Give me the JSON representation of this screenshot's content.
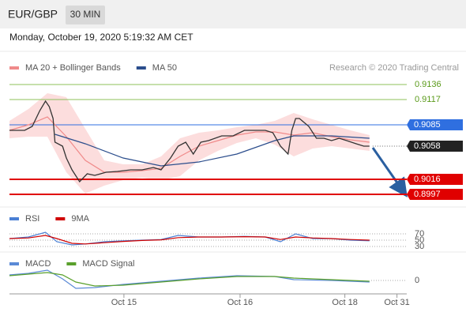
{
  "header": {
    "symbol": "EUR/GBP",
    "interval": "30 MIN",
    "date": "Monday, October 19, 2020 5:19:32 AM CET"
  },
  "chart_data": [
    {
      "type": "line",
      "credit": "Research © 2020 Trading Central",
      "xlim": [
        0,
        208
      ],
      "ylim": [
        0.8983,
        0.9148
      ],
      "price": {
        "color": "#333333",
        "x": [
          0,
          8,
          12,
          16,
          19,
          21,
          23,
          24,
          28,
          30,
          33,
          37,
          41,
          45,
          51,
          57,
          64,
          70,
          76,
          80,
          85,
          89,
          93,
          97,
          101,
          105,
          112,
          118,
          124,
          128,
          135,
          139,
          143,
          147,
          149,
          151,
          153,
          158,
          162,
          166,
          170,
          174,
          178,
          183,
          187,
          190
        ],
        "values": [
          0.9078,
          0.9078,
          0.9083,
          0.9103,
          0.9115,
          0.9108,
          0.9093,
          0.9063,
          0.9058,
          0.9043,
          0.9028,
          0.9013,
          0.9023,
          0.9021,
          0.9025,
          0.9026,
          0.9028,
          0.9028,
          0.9031,
          0.9028,
          0.9043,
          0.9058,
          0.9063,
          0.9048,
          0.9063,
          0.9065,
          0.9071,
          0.9071,
          0.9078,
          0.9078,
          0.9078,
          0.9075,
          0.9058,
          0.9048,
          0.9078,
          0.9093,
          0.9093,
          0.9083,
          0.9068,
          0.9068,
          0.9065,
          0.9068,
          0.9065,
          0.9061,
          0.9058,
          0.9058
        ]
      },
      "series": [
        {
          "name": "MA 20 + Bollinger Bands",
          "color": "#f08a8a",
          "x": [
            0,
            10,
            20,
            30,
            40,
            50,
            60,
            70,
            80,
            90,
            100,
            110,
            120,
            130,
            140,
            150,
            160,
            170,
            180,
            190
          ],
          "values": [
            0.9078,
            0.9085,
            0.9095,
            0.907,
            0.904,
            0.9025,
            0.9025,
            0.9027,
            0.903,
            0.9045,
            0.9058,
            0.9065,
            0.9072,
            0.9076,
            0.9076,
            0.9072,
            0.9075,
            0.907,
            0.9066,
            0.9063
          ],
          "upper": [
            0.909,
            0.9105,
            0.9125,
            0.912,
            0.908,
            0.904,
            0.9035,
            0.9035,
            0.9045,
            0.9068,
            0.9075,
            0.9078,
            0.9082,
            0.9085,
            0.909,
            0.91,
            0.9092,
            0.9085,
            0.9078,
            0.9072
          ],
          "lower": [
            0.9068,
            0.907,
            0.907,
            0.9025,
            0.8998,
            0.9008,
            0.9015,
            0.9018,
            0.9015,
            0.902,
            0.904,
            0.9052,
            0.9062,
            0.9068,
            0.906,
            0.9045,
            0.9055,
            0.9058,
            0.9055,
            0.9052
          ],
          "band_color": "#fbd4d4"
        },
        {
          "name": "MA 50",
          "color": "#2b4d8c",
          "x": [
            24,
            40,
            60,
            80,
            100,
            120,
            140,
            150,
            170,
            190
          ],
          "values": [
            0.9073,
            0.9061,
            0.9043,
            0.9033,
            0.9038,
            0.9048,
            0.9065,
            0.9071,
            0.9071,
            0.9068
          ]
        }
      ],
      "levels": [
        {
          "value": 0.9136,
          "color": "#8dc05a",
          "style": "text"
        },
        {
          "value": 0.9117,
          "color": "#8dc05a",
          "style": "text"
        },
        {
          "value": 0.9085,
          "color": "#2f6fe0",
          "style": "box"
        },
        {
          "value": 0.9058,
          "color": "#222222",
          "style": "current"
        },
        {
          "value": 0.9016,
          "color": "#e00000",
          "style": "box"
        },
        {
          "value": 0.8997,
          "color": "#e00000",
          "style": "box"
        }
      ]
    },
    {
      "type": "line",
      "xlim": [
        0,
        208
      ],
      "ylim": [
        20,
        80
      ],
      "yticks": [
        70,
        50,
        30
      ],
      "series": [
        {
          "name": "RSI",
          "color": "#4a7fd4",
          "x": [
            0,
            10,
            19,
            25,
            33,
            40,
            50,
            60,
            70,
            80,
            89,
            100,
            112,
            124,
            135,
            143,
            151,
            160,
            170,
            180,
            190
          ],
          "values": [
            55,
            60,
            75,
            45,
            35,
            38,
            45,
            48,
            50,
            52,
            65,
            60,
            60,
            62,
            60,
            45,
            70,
            55,
            55,
            50,
            48
          ]
        },
        {
          "name": "9MA",
          "color": "#d00000",
          "x": [
            0,
            10,
            19,
            25,
            33,
            40,
            50,
            60,
            70,
            80,
            89,
            100,
            112,
            124,
            135,
            143,
            151,
            160,
            170,
            180,
            190
          ],
          "values": [
            55,
            57,
            65,
            55,
            40,
            38,
            42,
            46,
            49,
            51,
            58,
            60,
            60,
            61,
            60,
            52,
            60,
            57,
            55,
            52,
            50
          ]
        }
      ]
    },
    {
      "type": "line",
      "xlim": [
        0,
        208
      ],
      "ylim": [
        -0.0015,
        0.0015
      ],
      "yticks": [
        0
      ],
      "xticks": [
        {
          "value": 60.4,
          "label": "Oct 15"
        },
        {
          "value": 121.7,
          "label": "Oct 16"
        },
        {
          "value": 177,
          "label": "Oct 18"
        },
        {
          "value": 204.5,
          "label": "Oct 31"
        }
      ],
      "series": [
        {
          "name": "MACD",
          "color": "#5b8ad6",
          "x": [
            0,
            10,
            20,
            28,
            35,
            45,
            60,
            80,
            100,
            120,
            140,
            150,
            170,
            190
          ],
          "values": [
            0.0007,
            0.0009,
            0.0013,
            0.0002,
            -0.001,
            -0.0009,
            -0.0005,
            -0.0001,
            0.0003,
            0.0006,
            0.0005,
            0.0001,
            0,
            -0.0002
          ]
        },
        {
          "name": "MACD Signal",
          "color": "#5aa02c",
          "x": [
            0,
            10,
            20,
            28,
            35,
            45,
            60,
            80,
            100,
            120,
            140,
            150,
            170,
            190
          ],
          "values": [
            0.0006,
            0.0008,
            0.001,
            0.0007,
            -0.0002,
            -0.0007,
            -0.0006,
            -0.0002,
            0.0002,
            0.0005,
            0.0005,
            0.0003,
            0.0001,
            -0.0001
          ]
        }
      ]
    }
  ]
}
